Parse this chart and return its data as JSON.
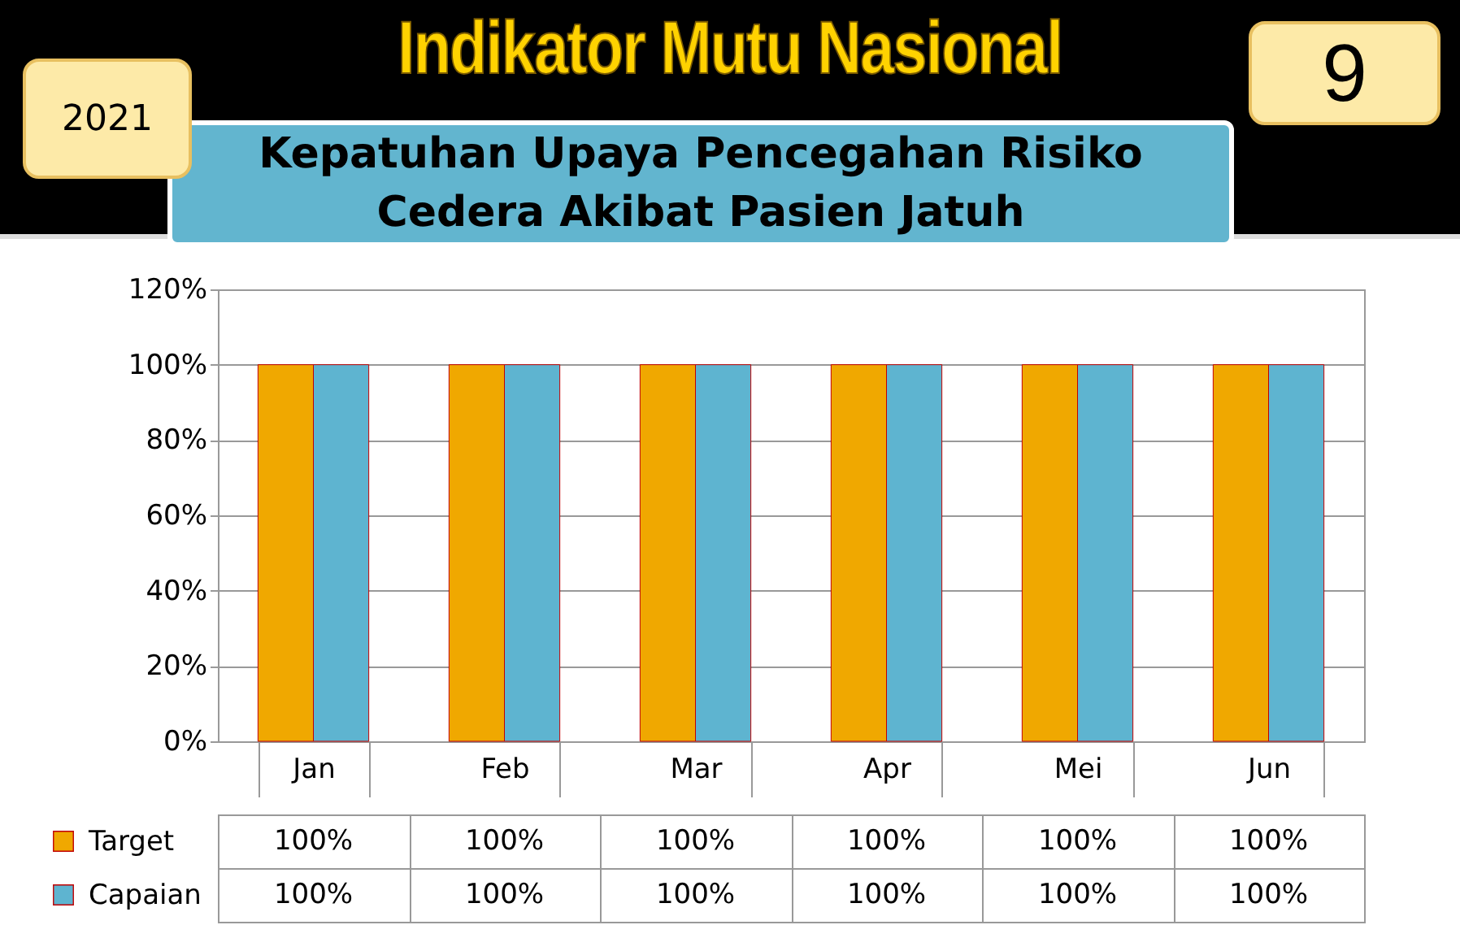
{
  "chart_data": {
    "type": "bar",
    "title": "Indikator Mutu Nasional",
    "subtitle": "Kepatuhan Upaya Pencegahan Risiko Cedera Akibat Pasien Jatuh",
    "annotations": [
      "2021",
      "9"
    ],
    "categories": [
      "Jan",
      "Feb",
      "Mar",
      "Apr",
      "Mei",
      "Jun"
    ],
    "series": [
      {
        "name": "Target",
        "color": "#f0a800",
        "values": [
          100,
          100,
          100,
          100,
          100,
          100
        ],
        "value_labels": [
          "100%",
          "100%",
          "100%",
          "100%",
          "100%",
          "100%"
        ]
      },
      {
        "name": "Capaian",
        "color": "#5eb4d0",
        "values": [
          100,
          100,
          100,
          100,
          100,
          100
        ],
        "value_labels": [
          "100%",
          "100%",
          "100%",
          "100%",
          "100%",
          "100%"
        ]
      }
    ],
    "ylim": [
      0,
      120
    ],
    "yticks": [
      {
        "value": 0,
        "label": "0%"
      },
      {
        "value": 20,
        "label": "20%"
      },
      {
        "value": 40,
        "label": "40%"
      },
      {
        "value": 60,
        "label": "60%"
      },
      {
        "value": 80,
        "label": "80%"
      },
      {
        "value": 100,
        "label": "100%"
      },
      {
        "value": 120,
        "label": "120%"
      }
    ],
    "grid": "y",
    "legend": "bottom"
  }
}
